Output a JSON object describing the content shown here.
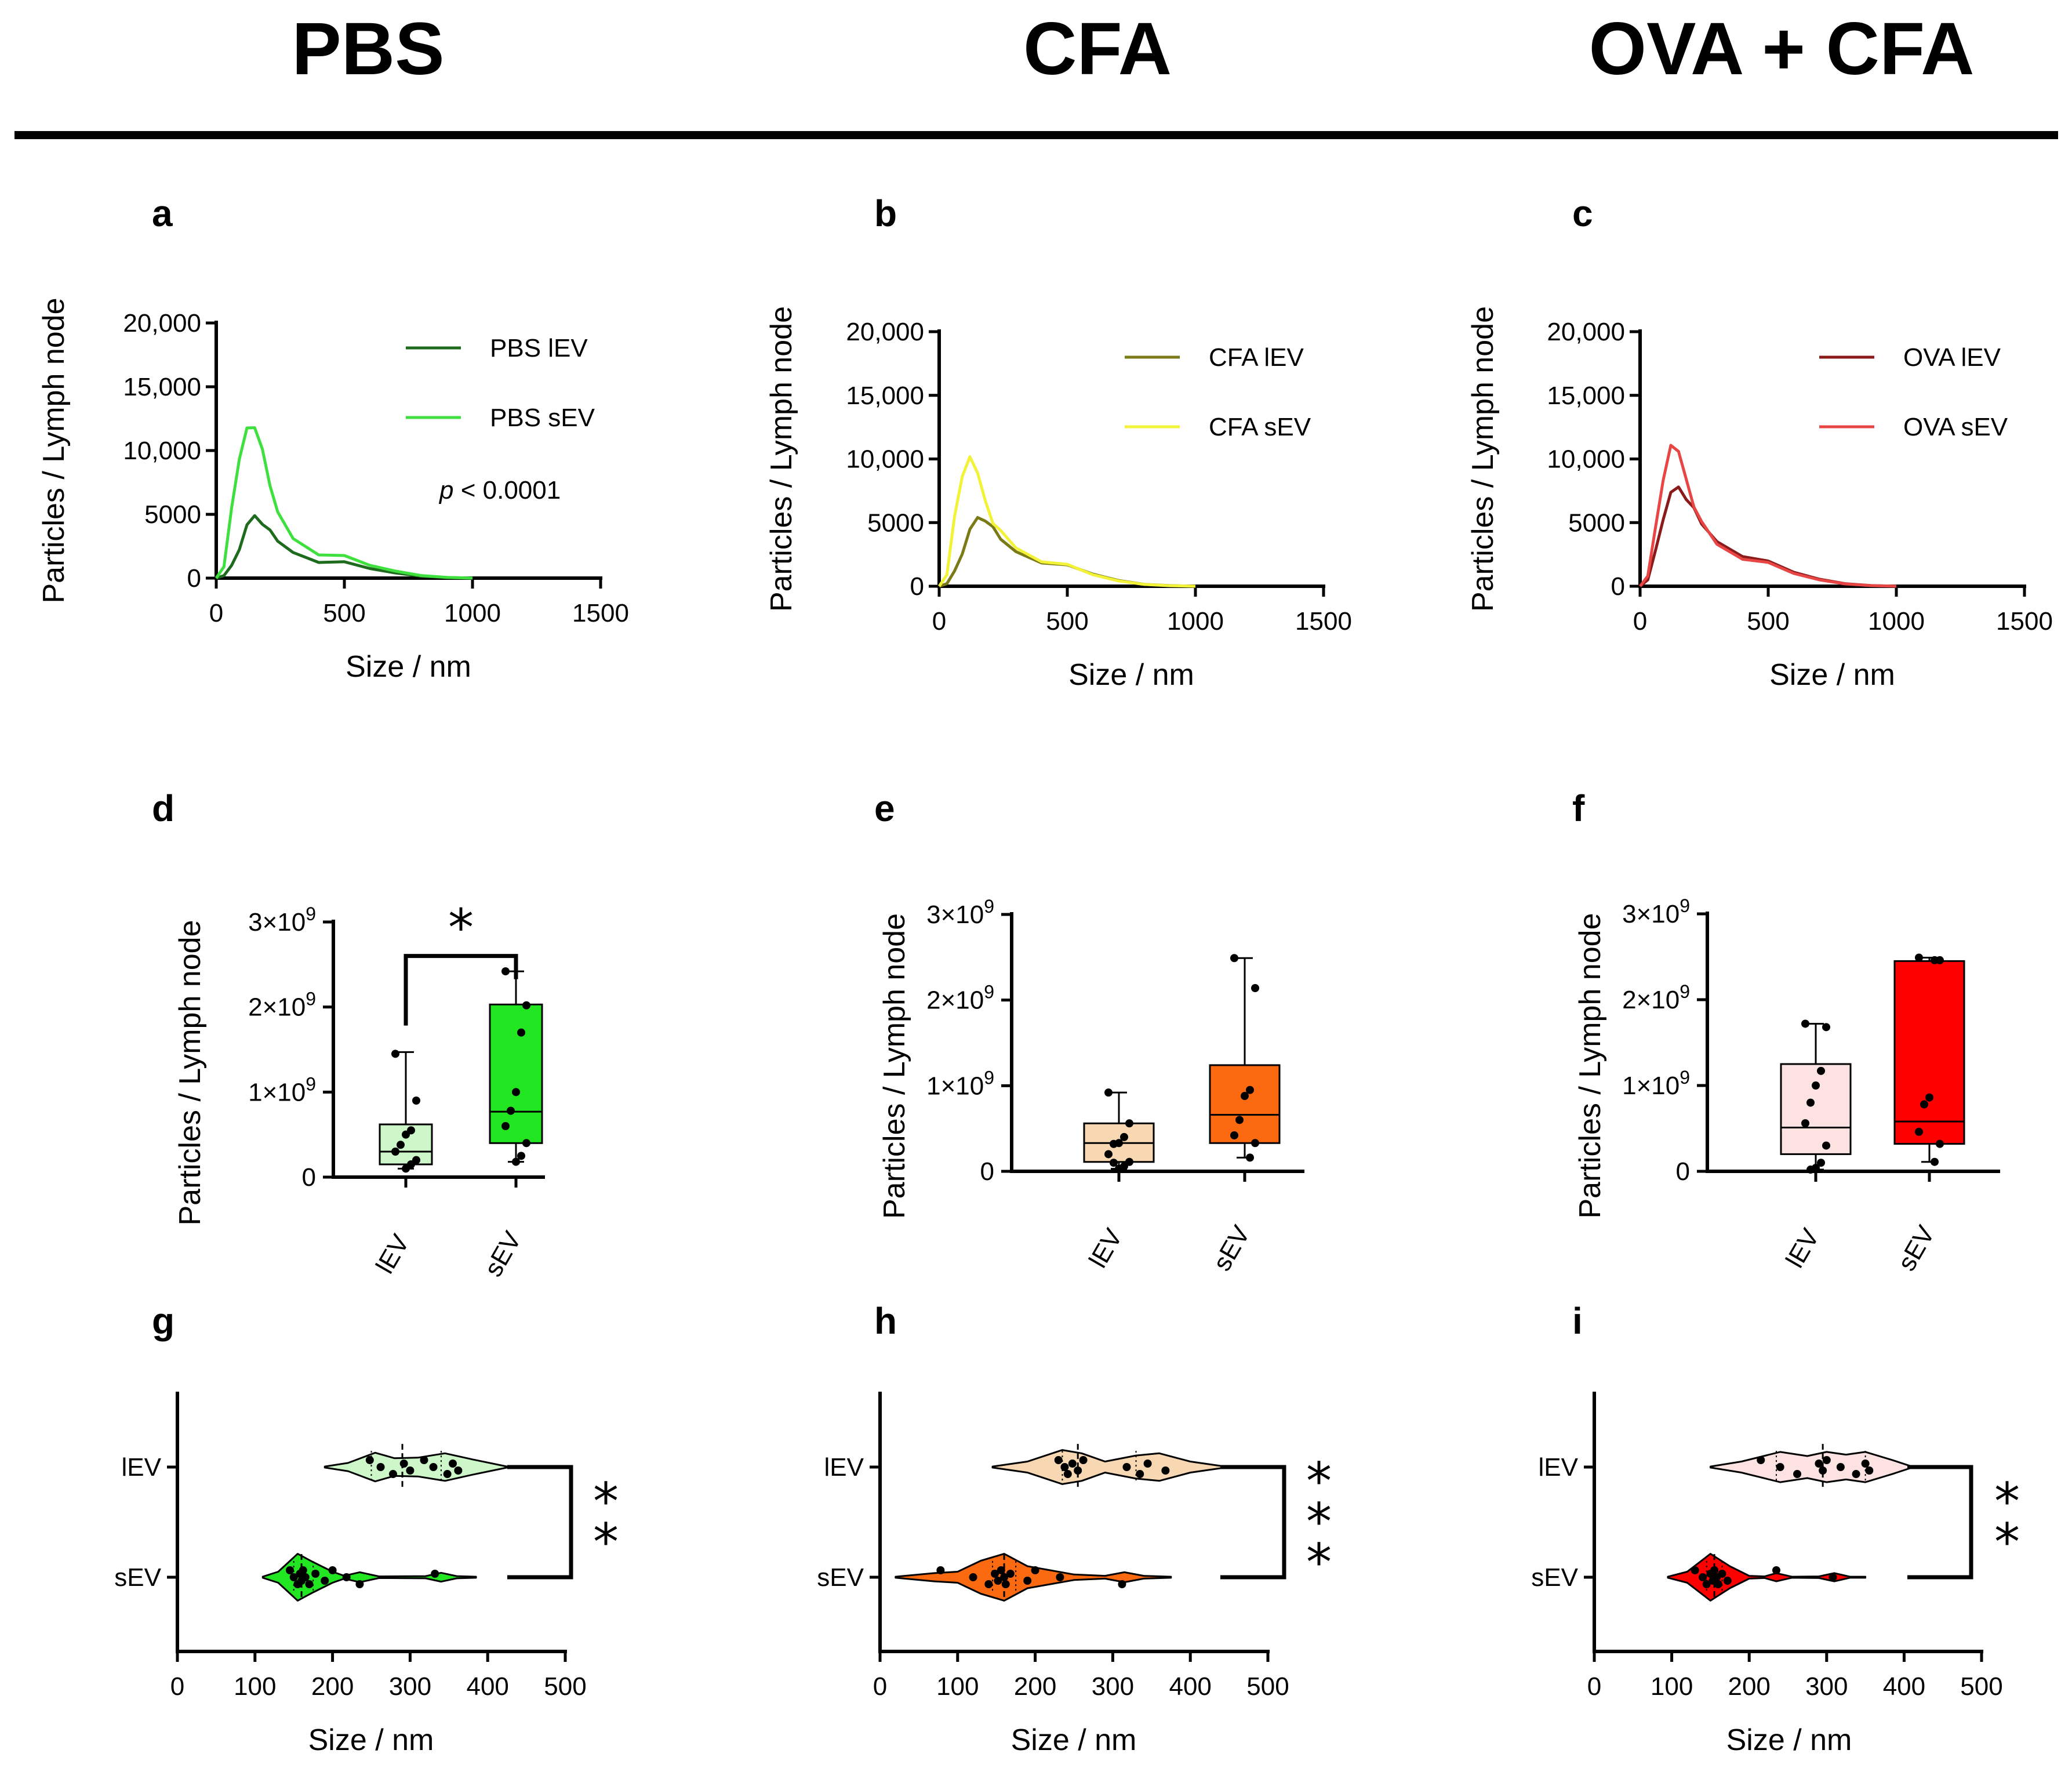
{
  "columns": [
    "PBS",
    "CFA",
    "OVA + CFA"
  ],
  "chart_data": [
    {
      "panel": "a",
      "type": "line",
      "group": "PBS",
      "xlabel": "Size / nm",
      "ylabel": "Particles / Lymph node",
      "xlim": [
        0,
        1500
      ],
      "ylim": [
        0,
        20000
      ],
      "xticks": [
        0,
        500,
        1000,
        1500
      ],
      "xtick_labels": [
        "0",
        "500",
        "1000",
        "1500"
      ],
      "yticks": [
        0,
        5000,
        10000,
        15000,
        20000
      ],
      "ytick_labels": [
        "0",
        "5000",
        "10,000",
        "15,000",
        "20,000"
      ],
      "annotation": {
        "italic": "p",
        "text": " < 0.0001"
      },
      "series": [
        {
          "name": "PBS lEV",
          "color": "#1e6b1e",
          "x": [
            0,
            30,
            60,
            90,
            120,
            150,
            180,
            210,
            240,
            300,
            400,
            500,
            600,
            700,
            800,
            900,
            1000
          ],
          "y": [
            0,
            200,
            1000,
            2500,
            4000,
            4900,
            4400,
            3500,
            2800,
            2100,
            1500,
            1100,
            750,
            400,
            150,
            50,
            0
          ]
        },
        {
          "name": "PBS sEV",
          "color": "#3ee03e",
          "x": [
            0,
            30,
            60,
            90,
            120,
            150,
            180,
            210,
            240,
            300,
            400,
            500,
            600,
            700,
            800,
            900,
            1000
          ],
          "y": [
            0,
            900,
            5500,
            9500,
            11500,
            11700,
            10200,
            7500,
            5000,
            3100,
            2000,
            1500,
            1000,
            550,
            200,
            60,
            0
          ]
        }
      ]
    },
    {
      "panel": "b",
      "type": "line",
      "group": "CFA",
      "xlabel": "Size / nm",
      "ylabel": "Particles / Lymph node",
      "xlim": [
        0,
        1500
      ],
      "ylim": [
        0,
        20000
      ],
      "xticks": [
        0,
        500,
        1000,
        1500
      ],
      "xtick_labels": [
        "0",
        "500",
        "1000",
        "1500"
      ],
      "yticks": [
        0,
        5000,
        10000,
        15000,
        20000
      ],
      "ytick_labels": [
        "0",
        "5000",
        "10,000",
        "15,000",
        "20,000"
      ],
      "series": [
        {
          "name": "CFA lEV",
          "color": "#7a7a16",
          "x": [
            0,
            30,
            60,
            90,
            120,
            150,
            180,
            210,
            240,
            300,
            400,
            500,
            600,
            700,
            800,
            900,
            1000
          ],
          "y": [
            0,
            200,
            1200,
            2800,
            4300,
            5400,
            5300,
            4400,
            3600,
            2800,
            2100,
            1500,
            950,
            450,
            150,
            50,
            0
          ]
        },
        {
          "name": "CFA sEV",
          "color": "#f2f238",
          "x": [
            0,
            30,
            60,
            90,
            120,
            150,
            180,
            210,
            240,
            300,
            400,
            500,
            600,
            700,
            800,
            900,
            1000
          ],
          "y": [
            0,
            900,
            5500,
            8800,
            9900,
            8800,
            6800,
            5200,
            4200,
            3000,
            2100,
            1450,
            900,
            420,
            140,
            40,
            0
          ]
        }
      ]
    },
    {
      "panel": "c",
      "type": "line",
      "group": "OVA + CFA",
      "xlabel": "Size / nm",
      "ylabel": "Particles / Lymph node",
      "xlim": [
        0,
        1500
      ],
      "ylim": [
        0,
        20000
      ],
      "xticks": [
        0,
        500,
        1000,
        1500
      ],
      "xtick_labels": [
        "0",
        "500",
        "1000",
        "1500"
      ],
      "yticks": [
        0,
        5000,
        10000,
        15000,
        20000
      ],
      "ytick_labels": [
        "0",
        "5000",
        "10,000",
        "15,000",
        "20,000"
      ],
      "series": [
        {
          "name": "OVA lEV",
          "color": "#8b1a1a",
          "x": [
            0,
            30,
            60,
            90,
            120,
            150,
            180,
            210,
            240,
            300,
            400,
            500,
            600,
            700,
            800,
            900,
            1000
          ],
          "y": [
            0,
            500,
            2800,
            5500,
            7200,
            7800,
            7000,
            5900,
            4800,
            3600,
            2600,
            1800,
            1100,
            550,
            200,
            60,
            0
          ]
        },
        {
          "name": "OVA sEV",
          "color": "#e84545",
          "x": [
            0,
            30,
            60,
            90,
            120,
            150,
            180,
            210,
            240,
            300,
            400,
            500,
            600,
            700,
            800,
            900,
            1000
          ],
          "y": [
            0,
            800,
            4600,
            8500,
            10800,
            10500,
            8500,
            6500,
            4900,
            3300,
            2300,
            1600,
            1000,
            500,
            180,
            50,
            0
          ]
        }
      ]
    },
    {
      "panel": "d",
      "type": "box",
      "group": "PBS",
      "ylabel": "Particles / Lymph node",
      "ylim": [
        0,
        3000000000
      ],
      "yticks": [
        0,
        1000000000,
        2000000000,
        3000000000
      ],
      "ytick_labels": [
        {
          "base": "0",
          "exp": ""
        },
        {
          "base": "1×10",
          "exp": "9"
        },
        {
          "base": "2×10",
          "exp": "9"
        },
        {
          "base": "3×10",
          "exp": "9"
        }
      ],
      "categories": [
        "lEV",
        "sEV"
      ],
      "significance": "*",
      "boxes": [
        {
          "name": "lEV",
          "fill": "#cdf7c9",
          "min": 100000000,
          "q1": 150000000,
          "median": 300000000,
          "q3": 620000000,
          "max": 1470000000,
          "points": [
            1450000000,
            900000000,
            550000000,
            500000000,
            380000000,
            300000000,
            200000000,
            150000000,
            100000000
          ]
        },
        {
          "name": "sEV",
          "fill": "#22e622",
          "min": 180000000,
          "q1": 400000000,
          "median": 770000000,
          "q3": 2030000000,
          "max": 2420000000,
          "points": [
            2420000000,
            2020000000,
            1700000000,
            1000000000,
            780000000,
            600000000,
            400000000,
            250000000,
            180000000
          ]
        }
      ]
    },
    {
      "panel": "e",
      "type": "box",
      "group": "CFA",
      "ylabel": "Particles / Lymph node",
      "ylim": [
        0,
        3000000000
      ],
      "yticks": [
        0,
        1000000000,
        2000000000,
        3000000000
      ],
      "ytick_labels": [
        {
          "base": "0",
          "exp": ""
        },
        {
          "base": "1×10",
          "exp": "9"
        },
        {
          "base": "2×10",
          "exp": "9"
        },
        {
          "base": "3×10",
          "exp": "9"
        }
      ],
      "categories": [
        "lEV",
        "sEV"
      ],
      "boxes": [
        {
          "name": "lEV",
          "fill": "#f8d7b3",
          "min": 30000000,
          "q1": 110000000,
          "median": 330000000,
          "q3": 560000000,
          "max": 920000000,
          "points": [
            920000000,
            560000000,
            400000000,
            330000000,
            320000000,
            200000000,
            110000000,
            60000000,
            30000000,
            100000000
          ]
        },
        {
          "name": "sEV",
          "fill": "#fb6a10",
          "min": 160000000,
          "q1": 330000000,
          "median": 660000000,
          "q3": 1240000000,
          "max": 2490000000,
          "points": [
            2490000000,
            2140000000,
            950000000,
            880000000,
            600000000,
            420000000,
            330000000,
            160000000
          ]
        }
      ]
    },
    {
      "panel": "f",
      "type": "box",
      "group": "OVA + CFA",
      "ylabel": "Particles / Lymph node",
      "ylim": [
        0,
        3000000000
      ],
      "yticks": [
        0,
        1000000000,
        2000000000,
        3000000000
      ],
      "ytick_labels": [
        {
          "base": "0",
          "exp": ""
        },
        {
          "base": "1×10",
          "exp": "9"
        },
        {
          "base": "2×10",
          "exp": "9"
        },
        {
          "base": "3×10",
          "exp": "9"
        }
      ],
      "categories": [
        "lEV",
        "sEV"
      ],
      "boxes": [
        {
          "name": "lEV",
          "fill": "#fde2e2",
          "min": 20000000,
          "q1": 200000000,
          "median": 510000000,
          "q3": 1250000000,
          "max": 1720000000,
          "points": [
            1720000000,
            1680000000,
            1170000000,
            1000000000,
            800000000,
            560000000,
            300000000,
            100000000,
            40000000,
            20000000
          ]
        },
        {
          "name": "sEV",
          "fill": "#ff0000",
          "min": 110000000,
          "q1": 320000000,
          "median": 580000000,
          "q3": 2450000000,
          "max": 2490000000,
          "points": [
            2490000000,
            2460000000,
            2460000000,
            860000000,
            780000000,
            460000000,
            320000000,
            110000000
          ]
        }
      ]
    },
    {
      "panel": "g",
      "type": "violin",
      "group": "PBS",
      "xlabel": "Size / nm",
      "xlim": [
        0,
        500
      ],
      "xticks": [
        0,
        100,
        200,
        300,
        400,
        500
      ],
      "xtick_labels": [
        "0",
        "100",
        "200",
        "300",
        "400",
        "500"
      ],
      "categories": [
        "lEV",
        "sEV"
      ],
      "significance": "**",
      "violins": [
        {
          "name": "lEV",
          "fill": "#cdf7c9",
          "median": 290,
          "q1": 250,
          "q3": 340,
          "profile": [
            [
              190,
              0.02
            ],
            [
              220,
              0.15
            ],
            [
              255,
              0.52
            ],
            [
              280,
              0.32
            ],
            [
              310,
              0.34
            ],
            [
              345,
              0.5
            ],
            [
              380,
              0.28
            ],
            [
              425,
              0.02
            ]
          ],
          "points": [
            248,
            262,
            278,
            292,
            300,
            318,
            330,
            348,
            355,
            362
          ]
        },
        {
          "name": "sEV",
          "fill": "#22e622",
          "median": 160,
          "q1": 150,
          "q3": 175,
          "profile": [
            [
              110,
              0.02
            ],
            [
              130,
              0.2
            ],
            [
              155,
              0.85
            ],
            [
              175,
              0.55
            ],
            [
              200,
              0.2
            ],
            [
              215,
              0.05
            ],
            [
              235,
              0.18
            ],
            [
              260,
              0.03
            ],
            [
              320,
              0.04
            ],
            [
              340,
              0.16
            ],
            [
              360,
              0.04
            ],
            [
              385,
              0.02
            ]
          ],
          "points": [
            145,
            150,
            155,
            158,
            160,
            162,
            165,
            170,
            178,
            190,
            200,
            218,
            235,
            332
          ]
        }
      ]
    },
    {
      "panel": "h",
      "type": "violin",
      "group": "CFA",
      "xlabel": "Size / nm",
      "xlim": [
        0,
        500
      ],
      "xticks": [
        0,
        100,
        200,
        300,
        400,
        500
      ],
      "xtick_labels": [
        "0",
        "100",
        "200",
        "300",
        "400",
        "500"
      ],
      "categories": [
        "lEV",
        "sEV"
      ],
      "significance": "***",
      "violins": [
        {
          "name": "lEV",
          "fill": "#f8d7b3",
          "median": 255,
          "q1": 235,
          "q3": 330,
          "profile": [
            [
              145,
              0.02
            ],
            [
              190,
              0.2
            ],
            [
              235,
              0.62
            ],
            [
              260,
              0.5
            ],
            [
              290,
              0.2
            ],
            [
              330,
              0.42
            ],
            [
              360,
              0.5
            ],
            [
              400,
              0.2
            ],
            [
              445,
              0.02
            ]
          ],
          "points": [
            230,
            238,
            242,
            248,
            255,
            262,
            318,
            335,
            345,
            368
          ]
        },
        {
          "name": "sEV",
          "fill": "#fb6a10",
          "median": 160,
          "q1": 145,
          "q3": 175,
          "profile": [
            [
              20,
              0.02
            ],
            [
              70,
              0.15
            ],
            [
              100,
              0.2
            ],
            [
              130,
              0.6
            ],
            [
              160,
              0.85
            ],
            [
              190,
              0.4
            ],
            [
              220,
              0.25
            ],
            [
              250,
              0.1
            ],
            [
              290,
              0.05
            ],
            [
              315,
              0.18
            ],
            [
              340,
              0.05
            ],
            [
              375,
              0.02
            ]
          ],
          "points": [
            78,
            120,
            140,
            148,
            152,
            156,
            160,
            162,
            168,
            190,
            200,
            232,
            312
          ]
        }
      ]
    },
    {
      "panel": "i",
      "type": "violin",
      "group": "OVA + CFA",
      "xlabel": "Size / nm",
      "xlim": [
        0,
        500
      ],
      "xticks": [
        0,
        100,
        200,
        300,
        400,
        500
      ],
      "xtick_labels": [
        "0",
        "100",
        "200",
        "300",
        "400",
        "500"
      ],
      "categories": [
        "lEV",
        "sEV"
      ],
      "significance": "**",
      "violins": [
        {
          "name": "lEV",
          "fill": "#fde2e2",
          "median": 295,
          "q1": 235,
          "q3": 350,
          "profile": [
            [
              150,
              0.02
            ],
            [
              190,
              0.2
            ],
            [
              240,
              0.55
            ],
            [
              275,
              0.4
            ],
            [
              300,
              0.55
            ],
            [
              325,
              0.45
            ],
            [
              350,
              0.55
            ],
            [
              385,
              0.25
            ],
            [
              410,
              0.02
            ]
          ],
          "points": [
            215,
            240,
            262,
            290,
            295,
            300,
            318,
            338,
            350,
            355
          ]
        },
        {
          "name": "sEV",
          "fill": "#ff0000",
          "median": 155,
          "q1": 145,
          "q3": 165,
          "profile": [
            [
              95,
              0.02
            ],
            [
              120,
              0.2
            ],
            [
              150,
              0.85
            ],
            [
              175,
              0.4
            ],
            [
              200,
              0.05
            ],
            [
              220,
              0.03
            ],
            [
              235,
              0.15
            ],
            [
              255,
              0.02
            ],
            [
              290,
              0.03
            ],
            [
              310,
              0.15
            ],
            [
              330,
              0.02
            ],
            [
              350,
              0.02
            ]
          ],
          "points": [
            130,
            140,
            145,
            150,
            153,
            155,
            158,
            160,
            165,
            172,
            235,
            308
          ]
        }
      ]
    }
  ]
}
